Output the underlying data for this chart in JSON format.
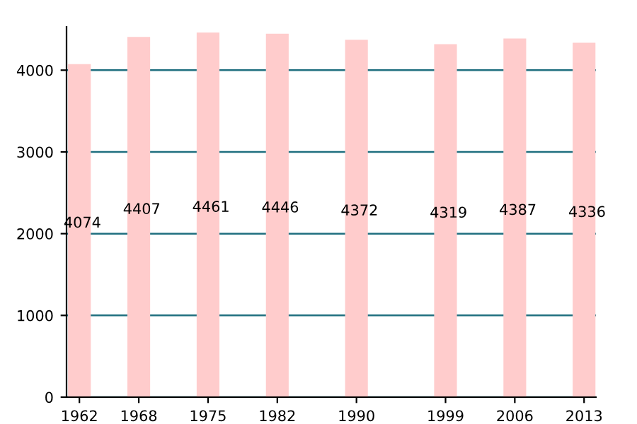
{
  "chart_data": {
    "type": "bar",
    "x": [
      1962,
      1968,
      1975,
      1982,
      1990,
      1999,
      2006,
      2013
    ],
    "values": [
      4074,
      4407,
      4461,
      4446,
      4372,
      4319,
      4387,
      4336
    ],
    "color": "#ffcccc",
    "data_labels": true,
    "xlim": [
      1960.7,
      2014.2
    ],
    "xticks": [
      1962,
      1968,
      1975,
      1982,
      1990,
      1999,
      2006,
      2013
    ],
    "ylim": [
      0,
      4530
    ],
    "yticks": [
      0,
      1000,
      2000,
      3000,
      4000
    ],
    "grid": "y",
    "legend": false
  }
}
